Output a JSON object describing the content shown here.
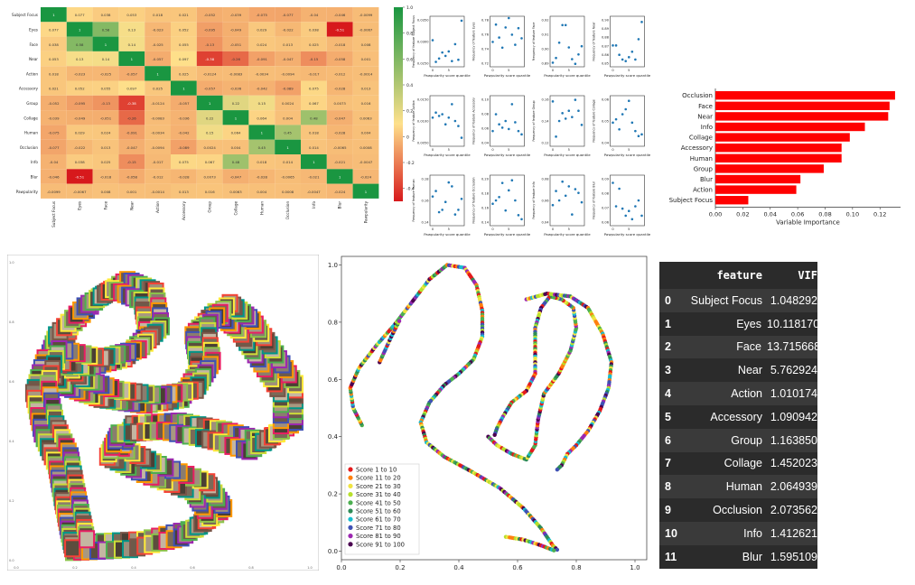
{
  "colors": {
    "heat_low": "#d7191c",
    "heat_mid": "#fee08b",
    "heat_high": "#1a9641",
    "bar": "#ff0000",
    "scatter": "#1f77b4",
    "table_bg": "#2b2b2b"
  },
  "chart_data": [
    {
      "type": "heatmap",
      "labels": [
        "Subject Focus",
        "Eyes",
        "Face",
        "Near",
        "Action",
        "Accessory",
        "Group",
        "Collage",
        "Human",
        "Occlusion",
        "Info",
        "Blur",
        "Pawpularity"
      ],
      "colorbar_ticks": [
        "1.0",
        "0.8",
        "0.6",
        "0.4",
        "0.2",
        "0",
        "-0.2",
        "-0.4"
      ],
      "values": [
        [
          1,
          0.077,
          0.038,
          0.053,
          0.018,
          0.021,
          -0.052,
          -0.039,
          -0.075,
          -0.077,
          -0.04,
          -0.046,
          -0.0099
        ],
        [
          0.077,
          1,
          0.58,
          0.13,
          -0.023,
          0.052,
          -0.095,
          -0.049,
          0.029,
          -0.022,
          0.038,
          -0.51,
          -0.0067
        ],
        [
          0.038,
          0.58,
          1,
          0.14,
          -0.025,
          0.055,
          -0.13,
          -0.051,
          0.024,
          0.013,
          0.025,
          -0.018,
          0.008
        ],
        [
          0.053,
          0.13,
          0.14,
          1,
          -0.057,
          0.097,
          -0.38,
          -0.26,
          -0.091,
          -0.047,
          -0.15,
          -0.058,
          0.001
        ],
        [
          0.018,
          -0.023,
          -0.025,
          -0.057,
          1,
          0.025,
          -0.0124,
          -0.0083,
          -0.0034,
          -0.0094,
          -0.017,
          -0.012,
          -0.0014
        ],
        [
          0.021,
          0.052,
          0.055,
          0.097,
          0.025,
          1,
          -0.057,
          -0.036,
          -0.042,
          -0.089,
          0.075,
          -0.028,
          0.013
        ],
        [
          -0.052,
          -0.095,
          -0.13,
          -0.38,
          -0.0124,
          -0.057,
          1,
          0.22,
          0.15,
          0.0024,
          0.067,
          0.0073,
          0.016
        ],
        [
          -0.039,
          -0.049,
          -0.051,
          -0.26,
          -0.0083,
          -0.036,
          0.22,
          1,
          0.064,
          0.004,
          0.48,
          -0.047,
          0.0063
        ],
        [
          -0.075,
          0.029,
          0.024,
          -0.091,
          -0.0034,
          -0.042,
          0.15,
          0.064,
          1,
          0.45,
          0.018,
          -0.028,
          0.004
        ],
        [
          -0.077,
          -0.022,
          0.013,
          -0.047,
          -0.0094,
          -0.089,
          0.0024,
          0.004,
          0.45,
          1,
          0.014,
          -0.0065,
          0.0008
        ],
        [
          -0.04,
          0.038,
          0.025,
          -0.15,
          -0.017,
          0.075,
          0.067,
          0.48,
          0.018,
          0.014,
          1,
          -0.021,
          -0.0047
        ],
        [
          -0.046,
          -0.51,
          -0.018,
          -0.058,
          -0.012,
          -0.028,
          0.0073,
          -0.047,
          -0.028,
          -0.0065,
          -0.021,
          1,
          -0.024
        ],
        [
          -0.0099,
          -0.0067,
          0.008,
          0.001,
          -0.0014,
          0.013,
          0.016,
          0.0063,
          0.004,
          0.0008,
          -0.0047,
          -0.024,
          1
        ]
      ]
    },
    {
      "type": "scatter",
      "xlabel": "Pawpularity score quantile",
      "xticks": [
        "0",
        "5"
      ],
      "subplots": [
        {
          "ylabel": "Frequency of feature Subject Focus",
          "yticks": [
            "0.0350",
            "0.0300",
            "0.0250"
          ],
          "ylim": [
            0.019,
            0.037
          ],
          "y": [
            0.0285,
            0.0202,
            0.0215,
            0.0238,
            0.0225,
            0.0242,
            0.0205,
            0.027,
            0.021,
            0.036
          ]
        },
        {
          "ylabel": "Frequency of feature Eyes",
          "yticks": [
            "0.78",
            "0.76",
            "0.74",
            "0.72"
          ],
          "ylim": [
            0.72,
            0.785
          ],
          "y": [
            0.752,
            0.776,
            0.758,
            0.744,
            0.772,
            0.785,
            0.762,
            0.748,
            0.771,
            0.757
          ]
        },
        {
          "ylabel": "Frequency of feature Face",
          "yticks": [
            "0.92",
            "0.91",
            "0.90",
            "0.89"
          ],
          "ylim": [
            0.886,
            0.926
          ],
          "y": [
            0.888,
            0.892,
            0.905,
            0.92,
            0.92,
            0.901,
            0.891,
            0.887,
            0.895,
            0.902
          ]
        },
        {
          "ylabel": "Frequency of feature Near",
          "yticks": [
            "0.90",
            "0.89",
            "0.88",
            "0.87",
            "0.86",
            "0.85"
          ],
          "ylim": [
            0.845,
            0.905
          ],
          "y": [
            0.87,
            0.87,
            0.858,
            0.852,
            0.85,
            0.855,
            0.862,
            0.852,
            0.878,
            0.9
          ]
        },
        {
          "ylabel": "Frequency of feature Action",
          "yticks": [
            "0.0150",
            "0.0100",
            "0.0050"
          ],
          "ylim": [
            0.003,
            0.017
          ],
          "y": [
            0.011,
            0.0125,
            0.0115,
            0.012,
            0.009,
            0.011,
            0.015,
            0.01,
            0.0085,
            0.005
          ]
        },
        {
          "ylabel": "Frequency of feature Accessory",
          "yticks": [
            "0.10",
            "0.08",
            "0.06",
            "0.04"
          ],
          "ylim": [
            0.035,
            0.105
          ],
          "y": [
            0.055,
            0.08,
            0.065,
            0.06,
            0.07,
            0.058,
            0.095,
            0.068,
            0.055,
            0.05
          ]
        },
        {
          "ylabel": "Frequency of feature Group",
          "yticks": [
            "0.16",
            "0.14",
            "0.12"
          ],
          "ylim": [
            0.105,
            0.165
          ],
          "y": [
            0.16,
            0.115,
            0.135,
            0.145,
            0.138,
            0.148,
            0.14,
            0.162,
            0.148,
            0.13
          ]
        },
        {
          "ylabel": "Frequency of feature Collage",
          "yticks": [
            "0.06",
            "0.05",
            "0.04"
          ],
          "ylim": [
            0.037,
            0.065
          ],
          "y": [
            0.05,
            0.052,
            0.046,
            0.055,
            0.058,
            0.063,
            0.05,
            0.045,
            0.042,
            0.043
          ]
        },
        {
          "ylabel": "Frequency of feature Human",
          "yticks": [
            "0.18",
            "0.16",
            "0.14"
          ],
          "ylim": [
            0.13,
            0.19
          ],
          "y": [
            0.165,
            0.172,
            0.145,
            0.148,
            0.158,
            0.183,
            0.178,
            0.142,
            0.148,
            0.162
          ]
        },
        {
          "ylabel": "Frequency of feature Occlusion",
          "yticks": [
            "0.20",
            "0.18",
            "0.16",
            "0.14"
          ],
          "ylim": [
            0.135,
            0.205
          ],
          "y": [
            0.165,
            0.17,
            0.175,
            0.196,
            0.155,
            0.185,
            0.2,
            0.17,
            0.148,
            0.142
          ]
        },
        {
          "ylabel": "Frequency of feature Info",
          "yticks": [
            "0.08",
            "0.06",
            "0.04"
          ],
          "ylim": [
            0.035,
            0.085
          ],
          "y": [
            0.055,
            0.07,
            0.06,
            0.08,
            0.065,
            0.075,
            0.045,
            0.072,
            0.068,
            0.058
          ]
        },
        {
          "ylabel": "Frequency of feature Blur",
          "yticks": [
            "0.09",
            "0.08",
            "0.07",
            "0.06"
          ],
          "ylim": [
            0.055,
            0.095
          ],
          "y": [
            0.09,
            0.07,
            0.085,
            0.068,
            0.062,
            0.066,
            0.059,
            0.07,
            0.075,
            0.062
          ]
        }
      ]
    },
    {
      "type": "bar",
      "orientation": "horizontal",
      "categories": [
        "Occlusion",
        "Face",
        "Near",
        "Info",
        "Collage",
        "Accessory",
        "Human",
        "Group",
        "Blur",
        "Action",
        "Subject Focus"
      ],
      "values": [
        0.131,
        0.127,
        0.126,
        0.109,
        0.098,
        0.092,
        0.092,
        0.079,
        0.062,
        0.059,
        0.024
      ],
      "xlabel": "Variable Importance",
      "xlim": [
        0,
        0.135
      ],
      "xticks": [
        0,
        0.02,
        0.04,
        0.06,
        0.08,
        0.1,
        0.12
      ],
      "xtick_labels": [
        "0.00",
        "0.02",
        "0.04",
        "0.06",
        "0.08",
        "0.10",
        "0.12"
      ]
    },
    {
      "type": "scatter",
      "description_kind": "image-embedding-grid",
      "xticks": [
        "0.0",
        "0.2",
        "0.4",
        "0.6",
        "0.8",
        "1.0"
      ],
      "yticks": [
        "0.0",
        "0.2",
        "0.4",
        "0.6",
        "0.8",
        "1.0"
      ]
    },
    {
      "type": "scatter",
      "xlim": [
        0,
        1.04
      ],
      "ylim": [
        -0.03,
        1.03
      ],
      "xticks": [
        "0.0",
        "0.2",
        "0.4",
        "0.6",
        "0.8",
        "1.0"
      ],
      "yticks": [
        "0.0",
        "0.2",
        "0.4",
        "0.6",
        "0.8",
        "1.0"
      ],
      "legend_position": "lower-left",
      "legend": [
        {
          "label": "Score 1 to 10",
          "color": "#e41a1c"
        },
        {
          "label": "Score 11 to 20",
          "color": "#ff7f0e"
        },
        {
          "label": "Score 21 to 30",
          "color": "#f0e442"
        },
        {
          "label": "Score 31 to 40",
          "color": "#b8e02c"
        },
        {
          "label": "Score 41 to 50",
          "color": "#4caf50"
        },
        {
          "label": "Score 51 to 60",
          "color": "#2e8b57"
        },
        {
          "label": "Score 61 to 70",
          "color": "#17becf"
        },
        {
          "label": "Score 71 to 80",
          "color": "#3f51b5"
        },
        {
          "label": "Score 81 to 90",
          "color": "#9c27b0"
        },
        {
          "label": "Score 91 to 100",
          "color": "#4b0050"
        }
      ],
      "curves": [
        [
          [
            0.07,
            0.44
          ],
          [
            0.04,
            0.5
          ],
          [
            0.03,
            0.57
          ],
          [
            0.06,
            0.64
          ],
          [
            0.12,
            0.72
          ],
          [
            0.18,
            0.79
          ],
          [
            0.24,
            0.87
          ],
          [
            0.3,
            0.95
          ],
          [
            0.36,
            1.0
          ],
          [
            0.42,
            0.99
          ],
          [
            0.46,
            0.93
          ],
          [
            0.48,
            0.84
          ],
          [
            0.48,
            0.75
          ],
          [
            0.45,
            0.67
          ],
          [
            0.4,
            0.62
          ],
          [
            0.35,
            0.58
          ],
          [
            0.3,
            0.52
          ],
          [
            0.27,
            0.45
          ],
          [
            0.29,
            0.38
          ],
          [
            0.35,
            0.33
          ],
          [
            0.44,
            0.28
          ],
          [
            0.54,
            0.22
          ],
          [
            0.62,
            0.15
          ],
          [
            0.68,
            0.08
          ],
          [
            0.72,
            0.02
          ],
          [
            0.74,
            0.0
          ]
        ],
        [
          [
            0.5,
            0.4
          ],
          [
            0.53,
            0.37
          ],
          [
            0.58,
            0.34
          ],
          [
            0.63,
            0.32
          ],
          [
            0.66,
            0.37
          ],
          [
            0.67,
            0.46
          ],
          [
            0.69,
            0.55
          ],
          [
            0.74,
            0.62
          ],
          [
            0.78,
            0.7
          ],
          [
            0.8,
            0.78
          ],
          [
            0.79,
            0.85
          ],
          [
            0.75,
            0.88
          ],
          [
            0.71,
            0.89
          ],
          [
            0.68,
            0.85
          ],
          [
            0.66,
            0.78
          ],
          [
            0.66,
            0.7
          ],
          [
            0.66,
            0.62
          ],
          [
            0.63,
            0.56
          ],
          [
            0.58,
            0.52
          ],
          [
            0.55,
            0.47
          ],
          [
            0.53,
            0.43
          ],
          [
            0.52,
            0.4
          ]
        ],
        [
          [
            0.63,
            0.88
          ],
          [
            0.7,
            0.9
          ],
          [
            0.78,
            0.89
          ],
          [
            0.84,
            0.85
          ],
          [
            0.89,
            0.76
          ],
          [
            0.92,
            0.66
          ],
          [
            0.91,
            0.57
          ],
          [
            0.88,
            0.49
          ],
          [
            0.84,
            0.42
          ],
          [
            0.8,
            0.37
          ],
          [
            0.77,
            0.34
          ],
          [
            0.75,
            0.3
          ],
          [
            0.73,
            0.28
          ]
        ],
        [
          [
            0.56,
            0.05
          ],
          [
            0.62,
            0.04
          ],
          [
            0.68,
            0.02
          ],
          [
            0.73,
            0.0
          ]
        ],
        [
          [
            0.13,
            0.66
          ],
          [
            0.17,
            0.75
          ],
          [
            0.2,
            0.81
          ]
        ]
      ]
    },
    {
      "type": "table",
      "columns": [
        "",
        "feature",
        "VIF"
      ],
      "rows": [
        [
          "0",
          "Subject Focus",
          "1.048292"
        ],
        [
          "1",
          "Eyes",
          "10.118170"
        ],
        [
          "2",
          "Face",
          "13.715668"
        ],
        [
          "3",
          "Near",
          "5.762924"
        ],
        [
          "4",
          "Action",
          "1.010174"
        ],
        [
          "5",
          "Accessory",
          "1.090942"
        ],
        [
          "6",
          "Group",
          "1.163850"
        ],
        [
          "7",
          "Collage",
          "1.452023"
        ],
        [
          "8",
          "Human",
          "2.064939"
        ],
        [
          "9",
          "Occlusion",
          "2.073562"
        ],
        [
          "10",
          "Info",
          "1.412621"
        ],
        [
          "11",
          "Blur",
          "1.595109"
        ]
      ]
    }
  ]
}
